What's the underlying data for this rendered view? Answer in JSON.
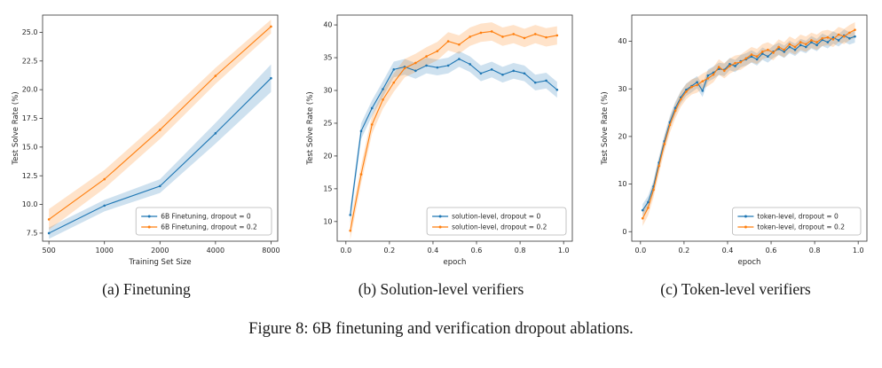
{
  "figure": {
    "caption": "Figure 8: 6B finetuning and verification dropout ablations.",
    "subcaptions": [
      "(a) Finetuning",
      "(b) Solution-level verifiers",
      "(c) Token-level verifiers"
    ]
  },
  "colors": {
    "blue": "#1f77b4",
    "orange": "#ff7f0e"
  },
  "chart_data": [
    {
      "type": "line",
      "title": "",
      "xlabel": "Training Set Size",
      "ylabel": "Test Solve Rate (%)",
      "xscale": "log",
      "xlim": [
        462,
        8700
      ],
      "ylim": [
        6.8,
        26.5
      ],
      "xticks": {
        "vals": [
          500,
          1000,
          2000,
          4000,
          8000
        ],
        "labels": [
          "500",
          "1000",
          "2000",
          "4000",
          "8000"
        ]
      },
      "yticks": {
        "vals": [
          7.5,
          10.0,
          12.5,
          15.0,
          17.5,
          20.0,
          22.5,
          25.0
        ],
        "labels": [
          "7.5",
          "10.0",
          "12.5",
          "15.0",
          "17.5",
          "20.0",
          "22.5",
          "25.0"
        ]
      },
      "legend_loc": "lower right",
      "series": [
        {
          "name": "6B Finetuning, dropout = 0",
          "color": "#1f77b4",
          "x": [
            500,
            1000,
            2000,
            4000,
            8000
          ],
          "y": [
            7.5,
            9.9,
            11.6,
            16.2,
            21.0
          ],
          "band": [
            0.5,
            0.5,
            0.6,
            0.9,
            1.2
          ]
        },
        {
          "name": "6B Finetuning, dropout = 0.2",
          "color": "#ff7f0e",
          "x": [
            500,
            1000,
            2000,
            4000,
            8000
          ],
          "y": [
            8.7,
            12.2,
            16.5,
            21.2,
            25.5
          ],
          "band": [
            0.9,
            0.8,
            0.8,
            0.7,
            0.6
          ]
        }
      ]
    },
    {
      "type": "line",
      "title": "",
      "xlabel": "epoch",
      "ylabel": "Test Solve Rate (%)",
      "xscale": "linear",
      "xlim": [
        -0.04,
        1.04
      ],
      "ylim": [
        7,
        41.5
      ],
      "xticks": {
        "vals": [
          0.0,
          0.2,
          0.4,
          0.6,
          0.8,
          1.0
        ],
        "labels": [
          "0.0",
          "0.2",
          "0.4",
          "0.6",
          "0.8",
          "1.0"
        ]
      },
      "yticks": {
        "vals": [
          10,
          15,
          20,
          25,
          30,
          35,
          40
        ],
        "labels": [
          "10",
          "15",
          "20",
          "25",
          "30",
          "35",
          "40"
        ]
      },
      "legend_loc": "lower right",
      "series": [
        {
          "name": "solution-level, dropout = 0",
          "color": "#1f77b4",
          "x": [
            0.02,
            0.07,
            0.12,
            0.17,
            0.22,
            0.27,
            0.32,
            0.37,
            0.42,
            0.47,
            0.52,
            0.57,
            0.62,
            0.67,
            0.72,
            0.77,
            0.82,
            0.87,
            0.92,
            0.97
          ],
          "y": [
            11.0,
            23.8,
            27.3,
            30.2,
            33.2,
            33.6,
            33.0,
            33.8,
            33.5,
            33.8,
            34.8,
            34.0,
            32.6,
            33.2,
            32.4,
            33.0,
            32.6,
            31.2,
            31.5,
            30.1
          ],
          "band": 1.2
        },
        {
          "name": "solution-level, dropout = 0.2",
          "color": "#ff7f0e",
          "x": [
            0.02,
            0.07,
            0.12,
            0.17,
            0.22,
            0.27,
            0.32,
            0.37,
            0.42,
            0.47,
            0.52,
            0.57,
            0.62,
            0.67,
            0.72,
            0.77,
            0.82,
            0.87,
            0.92,
            0.97
          ],
          "y": [
            8.6,
            17.2,
            24.8,
            28.6,
            31.2,
            33.4,
            34.2,
            35.2,
            36.0,
            37.5,
            37.0,
            38.2,
            38.8,
            39.0,
            38.2,
            38.6,
            38.0,
            38.6,
            38.1,
            38.4
          ],
          "band": 1.4
        }
      ]
    },
    {
      "type": "line",
      "title": "",
      "xlabel": "epoch",
      "ylabel": "Test Solve Rate (%)",
      "xscale": "linear",
      "xlim": [
        -0.04,
        1.04
      ],
      "ylim": [
        -2,
        45.5
      ],
      "xticks": {
        "vals": [
          0.0,
          0.2,
          0.4,
          0.6,
          0.8,
          1.0
        ],
        "labels": [
          "0.0",
          "0.2",
          "0.4",
          "0.6",
          "0.8",
          "1.0"
        ]
      },
      "yticks": {
        "vals": [
          0,
          10,
          20,
          30,
          40
        ],
        "labels": [
          "0",
          "10",
          "20",
          "30",
          "40"
        ]
      },
      "legend_loc": "lower right",
      "series": [
        {
          "name": "token-level, dropout = 0",
          "color": "#1f77b4",
          "x": [
            0.01,
            0.035,
            0.06,
            0.085,
            0.11,
            0.135,
            0.16,
            0.185,
            0.21,
            0.235,
            0.26,
            0.285,
            0.31,
            0.335,
            0.36,
            0.385,
            0.41,
            0.435,
            0.46,
            0.485,
            0.51,
            0.535,
            0.56,
            0.585,
            0.61,
            0.635,
            0.66,
            0.685,
            0.71,
            0.735,
            0.76,
            0.785,
            0.81,
            0.835,
            0.86,
            0.885,
            0.91,
            0.935,
            0.96,
            0.985
          ],
          "y": [
            4.5,
            6.2,
            9.5,
            14.5,
            19.0,
            23.0,
            26.0,
            28.2,
            29.8,
            30.6,
            31.4,
            29.6,
            32.8,
            33.4,
            34.2,
            34.0,
            35.2,
            34.8,
            35.8,
            36.2,
            36.8,
            36.2,
            37.4,
            36.8,
            37.8,
            38.4,
            37.8,
            38.8,
            38.2,
            39.2,
            38.8,
            39.8,
            39.2,
            40.3,
            39.8,
            40.8,
            40.2,
            41.2,
            40.6,
            41.0
          ],
          "band": 1.3
        },
        {
          "name": "token-level, dropout = 0.2",
          "color": "#ff7f0e",
          "x": [
            0.01,
            0.035,
            0.06,
            0.085,
            0.11,
            0.135,
            0.16,
            0.185,
            0.21,
            0.235,
            0.26,
            0.285,
            0.31,
            0.335,
            0.36,
            0.385,
            0.41,
            0.435,
            0.46,
            0.485,
            0.51,
            0.535,
            0.56,
            0.585,
            0.61,
            0.635,
            0.66,
            0.685,
            0.71,
            0.735,
            0.76,
            0.785,
            0.81,
            0.835,
            0.86,
            0.885,
            0.91,
            0.935,
            0.96,
            0.985
          ],
          "y": [
            2.8,
            5.0,
            8.8,
            13.8,
            18.4,
            22.4,
            25.4,
            27.8,
            29.4,
            30.4,
            30.8,
            31.6,
            32.2,
            33.0,
            34.6,
            33.8,
            34.8,
            35.4,
            35.6,
            36.4,
            37.2,
            36.8,
            37.8,
            38.2,
            37.6,
            38.8,
            38.2,
            39.4,
            38.8,
            39.8,
            39.4,
            40.2,
            39.8,
            40.6,
            40.8,
            40.4,
            41.4,
            41.0,
            41.8,
            42.4
          ],
          "band": 1.6
        }
      ]
    }
  ]
}
